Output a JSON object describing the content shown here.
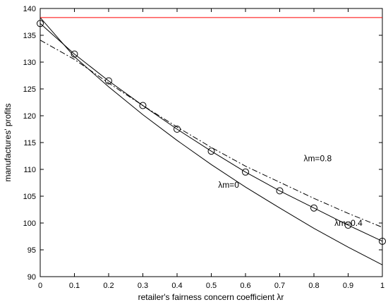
{
  "chart_data": {
    "type": "line",
    "title": "",
    "xlabel": "retailer's fairness concern coefficient λr",
    "ylabel": "manufactures' profits",
    "xlim": [
      0,
      1
    ],
    "ylim": [
      90,
      140
    ],
    "x_ticks": [
      "0",
      "0.1",
      "0.2",
      "0.3",
      "0.4",
      "0.5",
      "0.6",
      "0.7",
      "0.8",
      "0.9",
      "1"
    ],
    "y_ticks": [
      "90",
      "95",
      "100",
      "105",
      "110",
      "115",
      "120",
      "125",
      "130",
      "135",
      "140"
    ],
    "grid": false,
    "legend": "none",
    "colors": {
      "reference": "#ff0000",
      "series": "#000000"
    },
    "x": [
      0,
      0.1,
      0.2,
      0.3,
      0.4,
      0.5,
      0.6,
      0.7,
      0.8,
      0.9,
      1.0
    ],
    "series": [
      {
        "label_ref": "lm0",
        "style": "solid",
        "values": [
          138.3,
          131.0,
          125.4,
          120.2,
          115.4,
          110.9,
          106.7,
          102.8,
          99.0,
          95.5,
          92.2
        ]
      },
      {
        "label_ref": "lm04",
        "style": "solid",
        "marker": "circle",
        "values": [
          137.2,
          131.5,
          126.5,
          121.9,
          117.5,
          113.4,
          109.5,
          106.0,
          102.8,
          99.6,
          96.6
        ]
      },
      {
        "label_ref": "lm08",
        "style": "dashdot",
        "values": [
          134.1,
          130.5,
          126.1,
          121.9,
          117.9,
          114.1,
          110.6,
          107.6,
          104.6,
          101.8,
          99.2
        ]
      },
      {
        "style": "solid",
        "color": "#ff0000",
        "values": [
          138.3,
          138.3
        ],
        "x": [
          0,
          1
        ]
      }
    ],
    "annotations": {
      "lm0": {
        "text": "λm=0",
        "x": 0.52,
        "y": 106.6
      },
      "lm04": {
        "text": "λm=0.4",
        "x": 0.86,
        "y": 99.5
      },
      "lm08": {
        "text": "λm=0.8",
        "x": 0.77,
        "y": 111.5
      }
    }
  }
}
